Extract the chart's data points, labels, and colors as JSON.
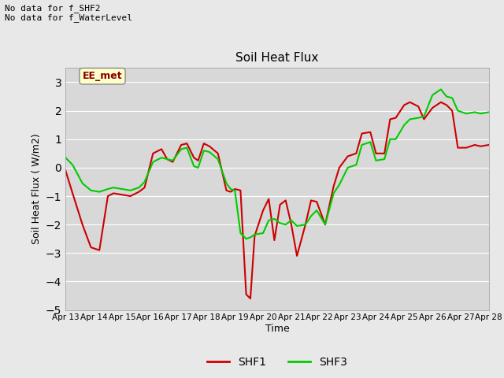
{
  "title": "Soil Heat Flux",
  "ylabel": "Soil Heat Flux ( W/m2)",
  "xlabel": "Time",
  "ylim": [
    -5.0,
    3.5
  ],
  "yticks": [
    -5.0,
    -4.0,
    -3.0,
    -2.0,
    -1.0,
    0.0,
    1.0,
    2.0,
    3.0
  ],
  "xtick_labels": [
    "Apr 13",
    "Apr 14",
    "Apr 15",
    "Apr 16",
    "Apr 17",
    "Apr 18",
    "Apr 19",
    "Apr 20",
    "Apr 21",
    "Apr 22",
    "Apr 23",
    "Apr 24",
    "Apr 25",
    "Apr 26",
    "Apr 27",
    "Apr 28"
  ],
  "annotation_text": "No data for f_SHF2\nNo data for f_WaterLevel",
  "box_label": "EE_met",
  "legend_entries": [
    "SHF1",
    "SHF3"
  ],
  "legend_colors": [
    "#cc0000",
    "#00cc00"
  ],
  "background_color": "#e8e8e8",
  "plot_bg_color": "#d8d8d8",
  "grid_color": "#ffffff",
  "shf1_x": [
    0,
    0.25,
    0.6,
    0.9,
    1.2,
    1.5,
    1.7,
    2.0,
    2.3,
    2.6,
    2.8,
    3.1,
    3.4,
    3.6,
    3.8,
    4.1,
    4.3,
    4.55,
    4.7,
    4.9,
    5.1,
    5.4,
    5.7,
    5.85,
    6.0,
    6.2,
    6.4,
    6.55,
    6.7,
    7.0,
    7.2,
    7.4,
    7.6,
    7.8,
    8.0,
    8.2,
    8.5,
    8.7,
    8.9,
    9.2,
    9.5,
    9.7,
    10.0,
    10.3,
    10.5,
    10.8,
    11.0,
    11.3,
    11.5,
    11.7,
    12.0,
    12.2,
    12.5,
    12.7,
    13.0,
    13.3,
    13.5,
    13.7,
    13.9,
    14.2,
    14.5,
    14.7,
    15.0
  ],
  "shf1_y": [
    -0.1,
    -0.9,
    -2.0,
    -2.8,
    -2.9,
    -1.0,
    -0.9,
    -0.95,
    -1.0,
    -0.85,
    -0.7,
    0.5,
    0.65,
    0.3,
    0.2,
    0.8,
    0.85,
    0.35,
    0.25,
    0.85,
    0.75,
    0.5,
    -0.8,
    -0.85,
    -0.75,
    -0.8,
    -4.45,
    -4.6,
    -2.4,
    -1.5,
    -1.1,
    -2.55,
    -1.3,
    -1.15,
    -2.0,
    -3.1,
    -2.0,
    -1.15,
    -1.2,
    -2.0,
    -0.65,
    0.0,
    0.4,
    0.5,
    1.2,
    1.25,
    0.5,
    0.5,
    1.7,
    1.75,
    2.2,
    2.3,
    2.15,
    1.7,
    2.1,
    2.3,
    2.2,
    2.0,
    0.7,
    0.7,
    0.8,
    0.75,
    0.8
  ],
  "shf3_x": [
    0,
    0.25,
    0.6,
    0.9,
    1.2,
    1.5,
    1.7,
    2.0,
    2.3,
    2.6,
    2.8,
    3.1,
    3.4,
    3.6,
    3.8,
    4.1,
    4.3,
    4.55,
    4.7,
    4.9,
    5.1,
    5.4,
    5.7,
    5.85,
    6.0,
    6.2,
    6.4,
    6.55,
    6.7,
    7.0,
    7.2,
    7.4,
    7.6,
    7.8,
    8.0,
    8.2,
    8.5,
    8.7,
    8.9,
    9.2,
    9.5,
    9.7,
    10.0,
    10.3,
    10.5,
    10.8,
    11.0,
    11.3,
    11.5,
    11.7,
    12.0,
    12.2,
    12.5,
    12.7,
    13.0,
    13.3,
    13.5,
    13.7,
    13.9,
    14.2,
    14.5,
    14.7,
    15.0
  ],
  "shf3_y": [
    0.35,
    0.1,
    -0.55,
    -0.8,
    -0.85,
    -0.75,
    -0.7,
    -0.75,
    -0.8,
    -0.7,
    -0.5,
    0.2,
    0.35,
    0.3,
    0.25,
    0.65,
    0.7,
    0.05,
    0.0,
    0.6,
    0.55,
    0.3,
    -0.55,
    -0.75,
    -0.8,
    -2.3,
    -2.5,
    -2.45,
    -2.35,
    -2.3,
    -1.85,
    -1.8,
    -1.95,
    -2.0,
    -1.85,
    -2.05,
    -2.0,
    -1.7,
    -1.5,
    -2.0,
    -0.9,
    -0.6,
    0.0,
    0.1,
    0.8,
    0.9,
    0.25,
    0.3,
    1.0,
    1.0,
    1.5,
    1.7,
    1.75,
    1.8,
    2.55,
    2.75,
    2.5,
    2.45,
    2.0,
    1.9,
    1.95,
    1.9,
    1.95
  ]
}
